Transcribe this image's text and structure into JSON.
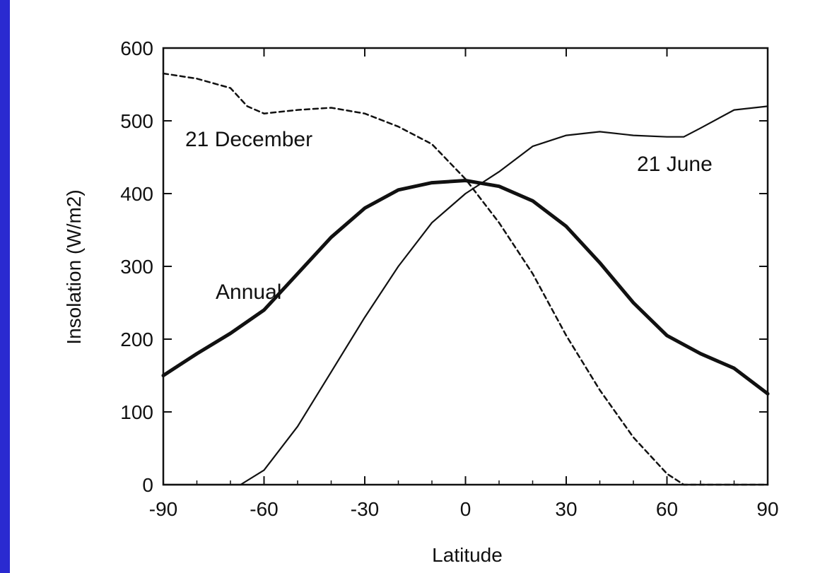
{
  "chart_data": {
    "type": "line",
    "title": "",
    "xlabel": "Latitude",
    "ylabel": "Insolation (W/m2)",
    "xlim": [
      -90,
      90
    ],
    "ylim": [
      0,
      600
    ],
    "xticks": [
      -90,
      -60,
      -30,
      0,
      30,
      60,
      90
    ],
    "yticks": [
      0,
      100,
      200,
      300,
      400,
      500,
      600
    ],
    "xtick_labels": [
      "-90",
      "-60",
      "-30",
      "0",
      "30",
      "60",
      "90"
    ],
    "ytick_labels": [
      "0",
      "100",
      "200",
      "300",
      "400",
      "500",
      "600"
    ],
    "grid": false,
    "series": [
      {
        "name": "21 December",
        "style": "dashed",
        "x": [
          -90,
          -80,
          -70,
          -65,
          -60,
          -50,
          -40,
          -30,
          -20,
          -10,
          0,
          10,
          20,
          30,
          40,
          50,
          60,
          65,
          70,
          80,
          90
        ],
        "y": [
          565,
          558,
          545,
          520,
          510,
          515,
          518,
          510,
          492,
          468,
          420,
          360,
          290,
          205,
          130,
          65,
          15,
          0,
          0,
          0,
          0
        ]
      },
      {
        "name": "21 June",
        "style": "solid",
        "x": [
          -90,
          -80,
          -70,
          -67,
          -60,
          -50,
          -40,
          -30,
          -20,
          -10,
          0,
          10,
          20,
          30,
          40,
          50,
          60,
          65,
          70,
          80,
          90
        ],
        "y": [
          0,
          0,
          0,
          0,
          20,
          80,
          155,
          230,
          300,
          360,
          400,
          430,
          465,
          480,
          485,
          480,
          478,
          478,
          490,
          515,
          520
        ]
      },
      {
        "name": "Annual",
        "style": "solid-thick",
        "x": [
          -90,
          -80,
          -70,
          -60,
          -50,
          -40,
          -30,
          -20,
          -10,
          0,
          10,
          20,
          30,
          40,
          50,
          60,
          70,
          80,
          90
        ],
        "y": [
          150,
          180,
          208,
          240,
          290,
          340,
          380,
          405,
          415,
          418,
          410,
          390,
          355,
          305,
          250,
          205,
          180,
          160,
          125
        ]
      }
    ]
  }
}
